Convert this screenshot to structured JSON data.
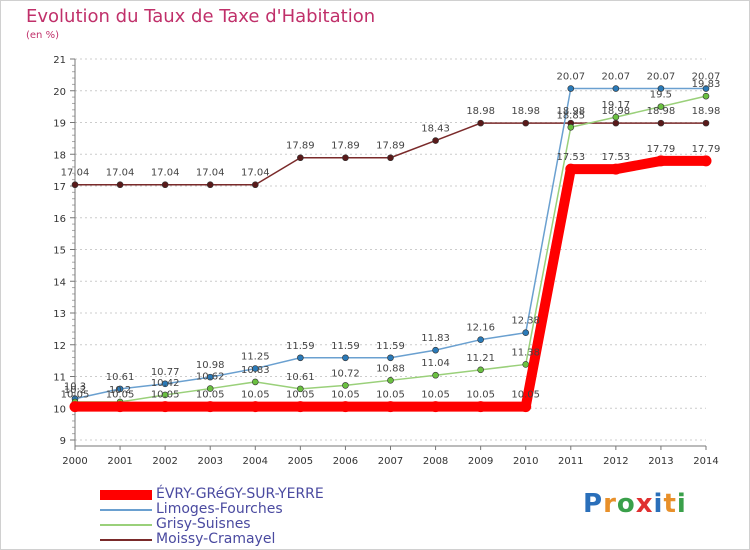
{
  "title": "Evolution du Taux de Taxe d'Habitation",
  "subtitle": "(en %)",
  "logo": {
    "letters": [
      "P",
      "r",
      "o",
      "x",
      "i",
      "t",
      "i"
    ],
    "colors": [
      "#2a6fba",
      "#e8902a",
      "#3aa04a",
      "#e03030",
      "#2a6fba",
      "#e8902a",
      "#3aa04a"
    ]
  },
  "chart_data": {
    "type": "line",
    "x": [
      "2000",
      "2001",
      "2002",
      "2003",
      "2004",
      "2005",
      "2006",
      "2007",
      "2008",
      "2009",
      "2010",
      "2011",
      "2012",
      "2013",
      "2014"
    ],
    "yticks": [
      "9",
      "10",
      "11",
      "12",
      "13",
      "14",
      "15",
      "16",
      "17",
      "18",
      "19",
      "20",
      "21"
    ],
    "ylim": [
      9,
      21
    ],
    "grid": "horizontal dashed",
    "legend": "bottom-left",
    "series": [
      {
        "name": "Moissy-Cramayel",
        "color": "#7a2a2a",
        "marker": "#5a1a1a",
        "values": [
          17.04,
          17.04,
          17.04,
          17.04,
          17.04,
          17.89,
          17.89,
          17.89,
          18.43,
          18.98,
          18.98,
          18.98,
          18.98,
          18.98,
          18.98
        ],
        "labels": [
          "17.04",
          "17.04",
          "17.04",
          "17.04",
          "17.04",
          "17.89",
          "17.89",
          "17.89",
          "18.43",
          "18.98",
          "18.98",
          "18.98",
          "18.98",
          "18.98",
          "18.98"
        ]
      },
      {
        "name": "Limoges-Fourches",
        "color": "#6aa0d0",
        "marker": "#2a7ab8",
        "values": [
          10.3,
          10.61,
          10.77,
          10.98,
          11.25,
          11.59,
          11.59,
          11.59,
          11.83,
          12.16,
          12.38,
          20.07,
          20.07,
          20.07,
          20.07
        ],
        "labels": [
          "10.3",
          "10.61",
          "10.77",
          "10.98",
          "11.25",
          "11.59",
          "11.59",
          "11.59",
          "11.83",
          "12.16",
          "12.38",
          "20.07",
          "20.07",
          "20.07",
          "20.07"
        ]
      },
      {
        "name": "Grisy-Suisnes",
        "color": "#9ad07a",
        "marker": "#6ac040",
        "values": [
          10.2,
          10.2,
          10.42,
          10.62,
          10.83,
          10.61,
          10.72,
          10.88,
          11.04,
          11.21,
          11.38,
          18.85,
          19.17,
          19.5,
          19.83
        ],
        "labels": [
          "10.2",
          "10.2",
          "10.42",
          "10.62",
          "10.83",
          "10.61",
          "10.72",
          "10.88",
          "11.04",
          "11.21",
          "11.38",
          "18.85",
          "19.17",
          "19.5",
          "19.83"
        ]
      },
      {
        "name": "ÉVRY-GRéGY-SUR-YERRE",
        "color": "#ff0000",
        "marker": "#ff0000",
        "thick": true,
        "values": [
          10.05,
          10.05,
          10.05,
          10.05,
          10.05,
          10.05,
          10.05,
          10.05,
          10.05,
          10.05,
          10.05,
          17.53,
          17.53,
          17.79,
          17.79
        ],
        "labels": [
          "10.05",
          "10.05",
          "10.05",
          "10.05",
          "10.05",
          "10.05",
          "10.05",
          "10.05",
          "10.05",
          "10.05",
          "10.05",
          "17.53",
          "17.53",
          "17.79",
          "17.79"
        ]
      }
    ],
    "legend_order": [
      "ÉVRY-GRéGY-SUR-YERRE",
      "Limoges-Fourches",
      "Grisy-Suisnes",
      "Moissy-Cramayel"
    ]
  }
}
